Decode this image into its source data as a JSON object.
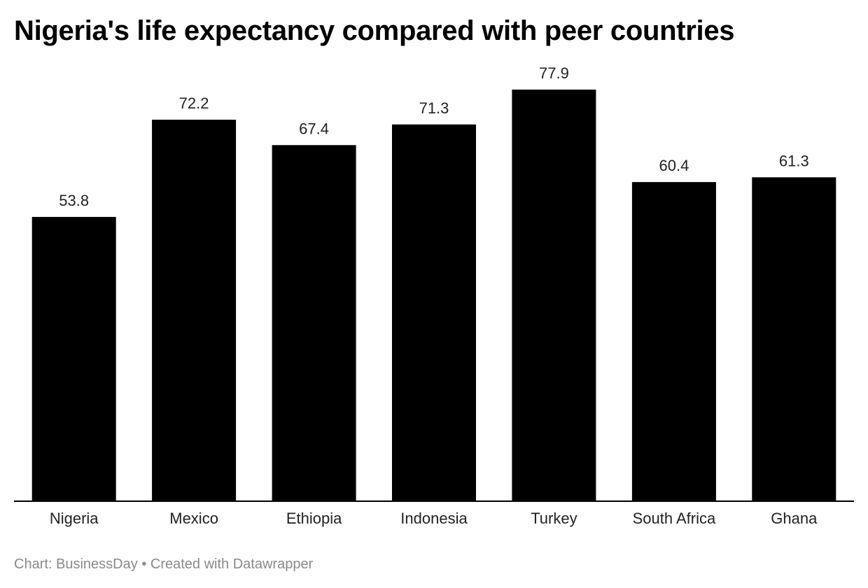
{
  "chart_data": {
    "type": "bar",
    "title": "Nigeria's life expectancy compared with peer countries",
    "categories": [
      "Nigeria",
      "Mexico",
      "Ethiopia",
      "Indonesia",
      "Turkey",
      "South Africa",
      "Ghana"
    ],
    "values": [
      53.8,
      72.2,
      67.4,
      71.3,
      77.9,
      60.4,
      61.3
    ],
    "value_labels": [
      "53.8",
      "72.2",
      "67.4",
      "71.3",
      "77.9",
      "60.4",
      "61.3"
    ],
    "xlabel": "",
    "ylabel": "",
    "ylim": [
      0,
      77.9
    ],
    "grid": false,
    "bar_color": "#000000"
  },
  "footer": {
    "source": "Chart: BusinessDay",
    "separator": "•",
    "credit": "Created with Datawrapper"
  }
}
